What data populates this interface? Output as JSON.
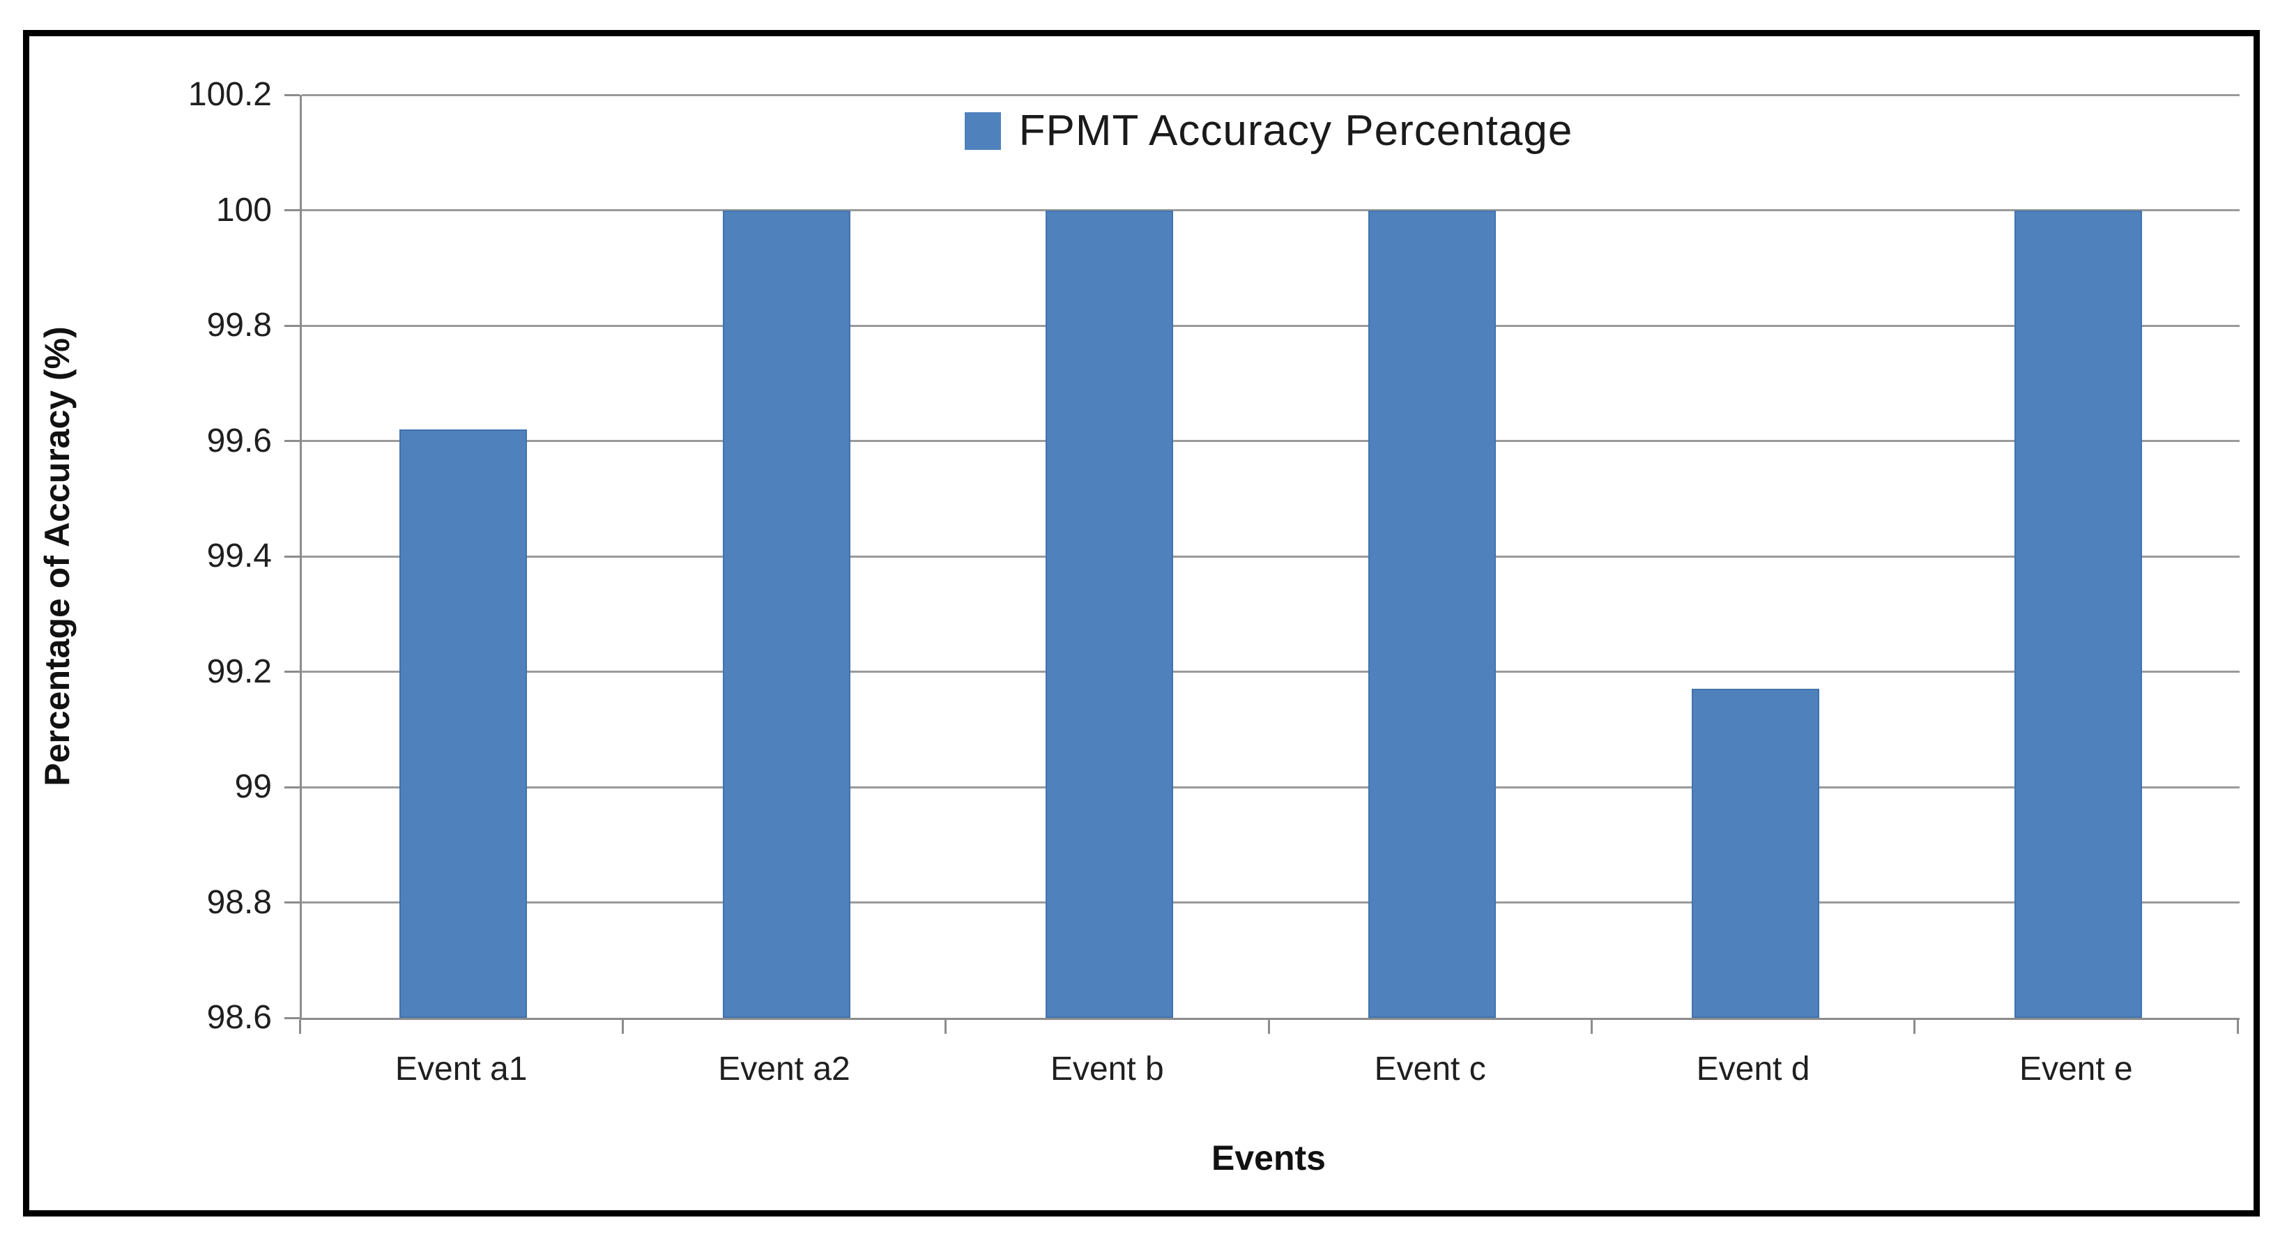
{
  "figure": {
    "background_color": "#FFFFFF",
    "border_color": "#000000"
  },
  "chart_data": {
    "type": "bar",
    "title": "",
    "xlabel": "Events",
    "ylabel": "Percentage of Accuracy (%)",
    "categories": [
      "Event a1",
      "Event a2",
      "Event b",
      "Event c",
      "Event d",
      "Event e"
    ],
    "series": [
      {
        "name": "FPMT Accuracy Percentage",
        "values": [
          99.62,
          100,
          100,
          100,
          99.17,
          100
        ]
      }
    ],
    "ylim": [
      98.6,
      100.2
    ],
    "ytick_labels": [
      "100.2",
      "100",
      "99.8",
      "99.6",
      "99.4",
      "99.2",
      "99",
      "98.8",
      "98.6"
    ],
    "grid": true,
    "legend": {
      "label": "FPMT Accuracy Percentage",
      "position": "top-center",
      "marker_color": "#4F81BD"
    },
    "colors": {
      "bar_fill": "#4F81BD",
      "bar_edge": "#4173AE",
      "gridline": "#9A9A9A",
      "axis_line": "#8C8C8C",
      "tick_text": "#1F1F1F",
      "title_text": "#111111"
    }
  }
}
